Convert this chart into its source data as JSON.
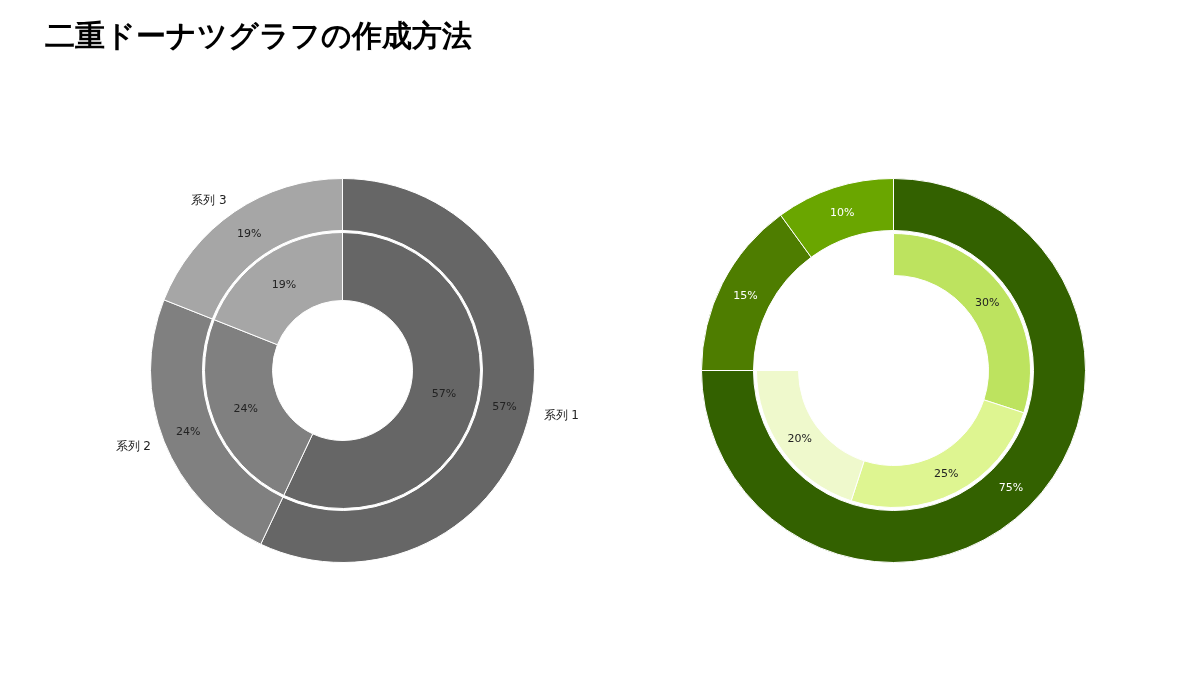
{
  "chart_data": [
    {
      "type": "donut",
      "title": "二重ドーナツグラフの作成方法",
      "categories": [
        "系列 1",
        "系列 2",
        "系列 3"
      ],
      "series": [
        {
          "colors": [
            "#666666",
            "#808080",
            "#a6a6a6"
          ],
          "values": [
            57,
            24,
            19
          ],
          "value_labels": [
            "57%",
            "24%",
            "19%"
          ]
        },
        {
          "colors": [
            "#666666",
            "#808080",
            "#a6a6a6"
          ],
          "values": [
            57,
            24,
            19
          ],
          "value_labels": [
            "57%",
            "24%",
            "19%"
          ]
        }
      ]
    },
    {
      "type": "donut",
      "categories": [
        null,
        null,
        null
      ],
      "series": [
        {
          "colors": [
            "#336100",
            "#4e7d00",
            "#6aa600"
          ],
          "values": [
            75,
            15,
            10
          ],
          "value_labels": [
            "75%",
            "15%",
            "10%"
          ]
        },
        {
          "colors": [
            "#bde35f",
            "#def591",
            "#eff9cc"
          ],
          "values": [
            30,
            25,
            20
          ],
          "value_labels": [
            "30%",
            "25%",
            "20%"
          ]
        }
      ]
    }
  ]
}
